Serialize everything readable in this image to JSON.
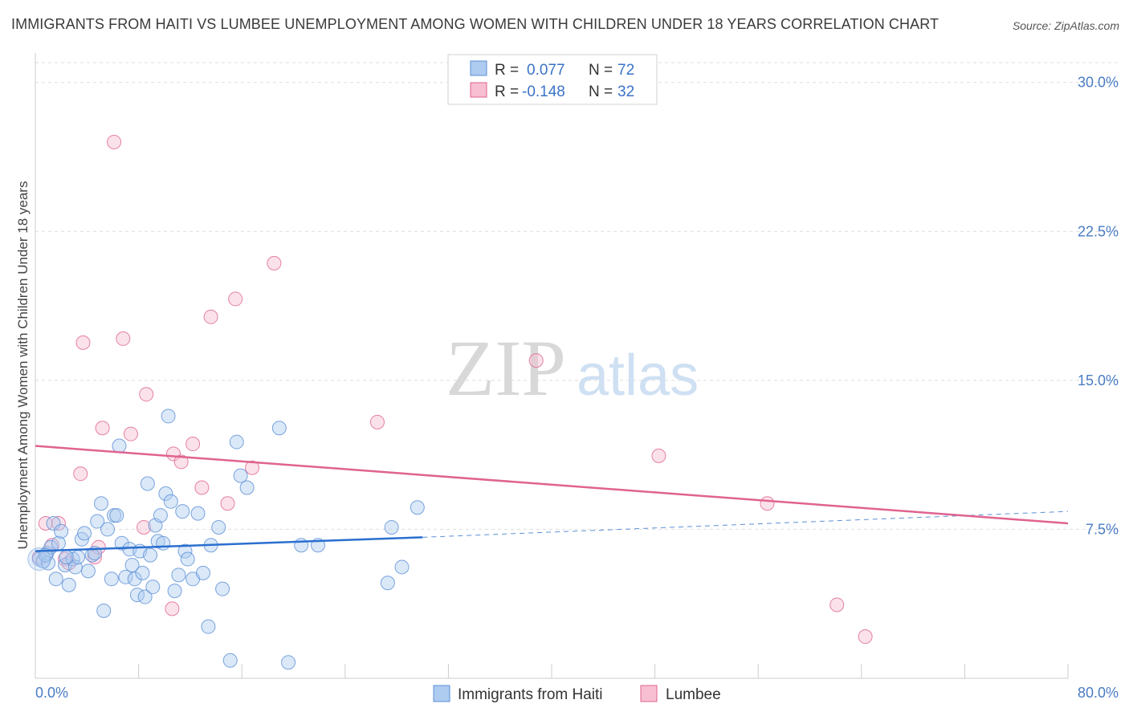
{
  "title": "IMMIGRANTS FROM HAITI VS LUMBEE UNEMPLOYMENT AMONG WOMEN WITH CHILDREN UNDER 18 YEARS CORRELATION CHART",
  "source": "Source: ZipAtlas.com",
  "watermark": {
    "zip": "ZIP",
    "atlas": "atlas"
  },
  "colors": {
    "haiti": "#5b8fd6",
    "haiti_fill": "#aecbf0",
    "lumbee": "#e0638f",
    "lumbee_fill": "#f7bfd1",
    "tick": "#4a7cc3",
    "grid": "#dddddd"
  },
  "legend": {
    "haiti": {
      "r_label": "R = ",
      "r_value": "0.077",
      "n_label": "N = ",
      "n_value": "72"
    },
    "lumbee": {
      "r_label": "R = ",
      "r_value": "-0.148",
      "n_label": "N = ",
      "n_value": "32"
    }
  },
  "chart_data": {
    "type": "scatter",
    "title": "IMMIGRANTS FROM HAITI VS LUMBEE UNEMPLOYMENT AMONG WOMEN WITH CHILDREN UNDER 18 YEARS CORRELATION CHART",
    "xlabel": "",
    "ylabel": "Unemployment Among Women with Children Under 18 years",
    "xlim": [
      0,
      80
    ],
    "ylim": [
      0,
      31
    ],
    "x_tick_labels": [
      "0.0%",
      "80.0%"
    ],
    "y_ticks": [
      7.5,
      15.0,
      22.5,
      30.0
    ],
    "y_tick_labels": [
      "7.5%",
      "15.0%",
      "22.5%",
      "30.0%"
    ],
    "grid": "horizontal dashed",
    "legend_position": "top-center",
    "series": [
      {
        "name": "Immigrants from Haiti",
        "color": "#5b8fd6",
        "R": 0.077,
        "N": 72,
        "trend": {
          "x": [
            0,
            30
          ],
          "y": [
            6.4,
            7.1
          ],
          "dashed_extension_to": [
            80,
            8.4
          ]
        },
        "points": [
          [
            0.3,
            6.0
          ],
          [
            0.6,
            5.9
          ],
          [
            0.9,
            6.3
          ],
          [
            1.0,
            5.8
          ],
          [
            1.2,
            6.6
          ],
          [
            1.4,
            7.8
          ],
          [
            1.6,
            5.0
          ],
          [
            1.8,
            6.8
          ],
          [
            2.0,
            7.4
          ],
          [
            2.3,
            5.7
          ],
          [
            2.6,
            4.7
          ],
          [
            2.9,
            6.0
          ],
          [
            3.1,
            5.6
          ],
          [
            3.3,
            6.1
          ],
          [
            3.6,
            7.0
          ],
          [
            3.8,
            7.3
          ],
          [
            4.1,
            5.4
          ],
          [
            4.4,
            6.2
          ],
          [
            4.8,
            7.9
          ],
          [
            5.1,
            8.8
          ],
          [
            5.3,
            3.4
          ],
          [
            5.6,
            7.5
          ],
          [
            5.9,
            5.0
          ],
          [
            6.1,
            8.2
          ],
          [
            6.3,
            8.2
          ],
          [
            6.5,
            11.7
          ],
          [
            6.7,
            6.8
          ],
          [
            7.0,
            5.1
          ],
          [
            7.3,
            6.5
          ],
          [
            7.5,
            5.7
          ],
          [
            7.7,
            5.0
          ],
          [
            7.9,
            4.2
          ],
          [
            8.1,
            6.4
          ],
          [
            8.3,
            5.3
          ],
          [
            8.5,
            4.1
          ],
          [
            8.7,
            9.8
          ],
          [
            8.9,
            6.2
          ],
          [
            9.1,
            4.6
          ],
          [
            9.3,
            7.7
          ],
          [
            9.5,
            6.9
          ],
          [
            9.7,
            8.2
          ],
          [
            9.9,
            6.8
          ],
          [
            10.1,
            9.3
          ],
          [
            10.3,
            13.2
          ],
          [
            10.5,
            8.9
          ],
          [
            10.8,
            4.4
          ],
          [
            11.1,
            5.2
          ],
          [
            11.4,
            8.4
          ],
          [
            11.6,
            6.4
          ],
          [
            11.8,
            6.0
          ],
          [
            12.2,
            5.0
          ],
          [
            12.6,
            8.3
          ],
          [
            13.0,
            5.3
          ],
          [
            13.4,
            2.6
          ],
          [
            13.6,
            6.7
          ],
          [
            14.2,
            7.6
          ],
          [
            14.5,
            4.5
          ],
          [
            15.1,
            0.9
          ],
          [
            15.6,
            11.9
          ],
          [
            15.9,
            10.2
          ],
          [
            16.4,
            9.6
          ],
          [
            18.9,
            12.6
          ],
          [
            19.6,
            0.8
          ],
          [
            20.6,
            6.7
          ],
          [
            21.9,
            6.7
          ],
          [
            27.3,
            4.8
          ],
          [
            27.6,
            7.6
          ],
          [
            28.4,
            5.6
          ],
          [
            29.6,
            8.6
          ],
          [
            0.8,
            6.2
          ],
          [
            2.4,
            6.1
          ],
          [
            4.6,
            6.3
          ]
        ]
      },
      {
        "name": "Lumbee",
        "color": "#e0638f",
        "R": -0.148,
        "N": 32,
        "trend": {
          "x": [
            0,
            80
          ],
          "y": [
            11.7,
            7.8
          ]
        },
        "points": [
          [
            0.3,
            6.1
          ],
          [
            0.8,
            7.8
          ],
          [
            1.3,
            6.7
          ],
          [
            1.8,
            7.8
          ],
          [
            2.3,
            6.0
          ],
          [
            3.5,
            10.3
          ],
          [
            3.7,
            16.9
          ],
          [
            4.6,
            6.1
          ],
          [
            4.9,
            6.6
          ],
          [
            5.2,
            12.6
          ],
          [
            6.1,
            27.0
          ],
          [
            6.8,
            17.1
          ],
          [
            7.4,
            12.3
          ],
          [
            8.4,
            7.6
          ],
          [
            8.6,
            14.3
          ],
          [
            10.6,
            3.5
          ],
          [
            10.7,
            11.3
          ],
          [
            11.3,
            10.9
          ],
          [
            12.2,
            11.8
          ],
          [
            12.9,
            9.6
          ],
          [
            13.6,
            18.2
          ],
          [
            14.9,
            8.8
          ],
          [
            15.5,
            19.1
          ],
          [
            16.8,
            10.6
          ],
          [
            18.5,
            20.9
          ],
          [
            26.5,
            12.9
          ],
          [
            38.8,
            16.0
          ],
          [
            48.3,
            11.2
          ],
          [
            56.7,
            8.8
          ],
          [
            62.1,
            3.7
          ],
          [
            64.3,
            2.1
          ],
          [
            2.6,
            5.8
          ]
        ]
      }
    ]
  },
  "bottom_legend": {
    "haiti_label": "Immigrants from Haiti",
    "lumbee_label": "Lumbee"
  }
}
